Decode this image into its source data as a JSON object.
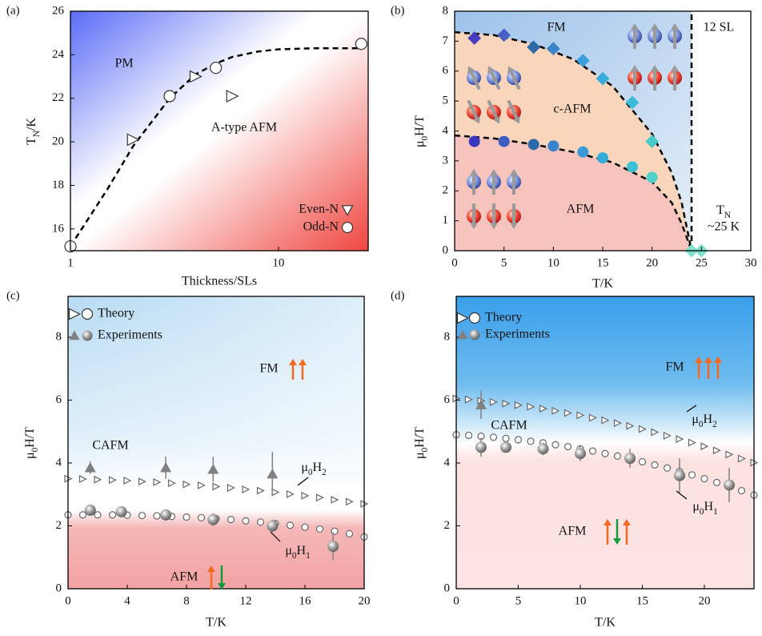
{
  "chart_data": [
    {
      "type": "scatter",
      "panel_label": "(a)",
      "x_label": "Thickness/SLs",
      "y_label": [
        "T",
        "N",
        "/K"
      ],
      "xlog": true,
      "xlim": [
        1,
        27
      ],
      "ylim": [
        15,
        26
      ],
      "xticks": [
        1,
        10
      ],
      "yticks": [
        16,
        18,
        20,
        22,
        24,
        26
      ],
      "series": [
        {
          "line": "dashed",
          "color": "#000000",
          "x": [
            1,
            1.5,
            2,
            3,
            4,
            5,
            6,
            8,
            10,
            15,
            25
          ],
          "values": [
            15.2,
            17.8,
            19.8,
            22.0,
            23.1,
            23.6,
            23.9,
            24.15,
            24.25,
            24.3,
            24.3
          ]
        },
        {
          "marker": "triangle-right",
          "color": "#ffffff",
          "edgecolor": "#333333",
          "x": [
            2,
            4,
            6
          ],
          "values": [
            20.1,
            23.0,
            22.1
          ]
        },
        {
          "marker": "circle",
          "color": "#ffffff",
          "edgecolor": "#333333",
          "x": [
            1,
            3,
            5,
            25
          ],
          "values": [
            15.2,
            22.1,
            23.4,
            24.5
          ]
        }
      ],
      "legend": [
        {
          "name": "Even-N",
          "markers": [
            "triangle-down"
          ]
        },
        {
          "name": "Odd-N",
          "markers": [
            "circle"
          ]
        }
      ],
      "annotations": [
        "PM",
        "A-type AFM"
      ]
    },
    {
      "type": "scatter",
      "panel_label": "(b)",
      "x_label": "T/K",
      "y_label": [
        "μ",
        "0",
        "H/T"
      ],
      "xlim": [
        0,
        30
      ],
      "ylim": [
        0,
        8
      ],
      "xticks": [
        0,
        5,
        10,
        15,
        20,
        25,
        30
      ],
      "yticks": [
        0,
        1,
        2,
        3,
        4,
        5,
        6,
        7,
        8
      ],
      "series": [
        {
          "line": "dashed",
          "color": "#000000",
          "x": [
            0,
            4,
            8,
            12,
            16,
            20,
            22,
            23,
            24
          ],
          "values": [
            7.3,
            7.2,
            6.9,
            6.4,
            5.5,
            3.9,
            2.6,
            1.6,
            0
          ]
        },
        {
          "line": "dashed",
          "color": "#000000",
          "x": [
            0,
            4,
            8,
            12,
            16,
            20,
            22,
            23,
            24
          ],
          "values": [
            3.85,
            3.75,
            3.55,
            3.3,
            2.95,
            2.3,
            1.6,
            0.9,
            0
          ]
        },
        {
          "line": "dashed",
          "color": "#000000",
          "x": [
            24,
            24
          ],
          "values": [
            0,
            8
          ]
        },
        {
          "marker": "diamond",
          "edgecolor": "none",
          "colors": [
            "#4a3cc0",
            "#4a5fc4",
            "#2f6aa8",
            "#3a86c8",
            "#3a9fd8",
            "#38acd9",
            "#38bcd8",
            "#48cbc6"
          ],
          "x": [
            2,
            5,
            8,
            10,
            13,
            15,
            18,
            20
          ],
          "values": [
            7.1,
            7.2,
            6.8,
            6.75,
            6.35,
            5.75,
            4.95,
            3.65
          ]
        },
        {
          "marker": "circle",
          "edgecolor": "none",
          "colors": [
            "#3a36c0",
            "#3b5cc4",
            "#2a6aa8",
            "#3584cc",
            "#3a9ad6",
            "#35acd9",
            "#3cc0d5",
            "#4fd0c8"
          ],
          "x": [
            2,
            5,
            8,
            10,
            13,
            15,
            18,
            20
          ],
          "values": [
            3.65,
            3.65,
            3.55,
            3.5,
            3.3,
            3.1,
            2.8,
            2.45
          ]
        },
        {
          "marker": "diamond",
          "edgecolor": "none",
          "color": "#7fe0cc",
          "x": [
            24,
            25
          ],
          "values": [
            0,
            0
          ]
        }
      ],
      "annotations": [
        "FM",
        "c-AFM",
        "AFM",
        "12 SL",
        [
          "T",
          "N"
        ],
        "~25 K"
      ]
    },
    {
      "type": "scatter",
      "panel_label": "(c)",
      "x_label": "T/K",
      "y_label": [
        "μ",
        "0",
        "H/T"
      ],
      "xlim": [
        0,
        20
      ],
      "ylim": [
        0,
        9.3
      ],
      "xticks": [
        0,
        4,
        8,
        12,
        16,
        20
      ],
      "yticks": [
        0,
        2,
        4,
        6,
        8
      ],
      "series": [
        {
          "marker": "triangle-right",
          "size": 4,
          "color": "#ffffff",
          "edgecolor": "#666666",
          "x": [
            0,
            1,
            2,
            3,
            4,
            5,
            6,
            7,
            8,
            9,
            10,
            11,
            12,
            13,
            14,
            15,
            16,
            17,
            18,
            19,
            20
          ],
          "values": [
            3.5,
            3.49,
            3.47,
            3.46,
            3.44,
            3.41,
            3.39,
            3.36,
            3.32,
            3.29,
            3.25,
            3.21,
            3.16,
            3.12,
            3.07,
            3.01,
            2.96,
            2.9,
            2.83,
            2.77,
            2.7
          ]
        },
        {
          "marker": "circle",
          "size": 4,
          "color": "#ffffff",
          "edgecolor": "#666666",
          "x": [
            0,
            1,
            2,
            3,
            4,
            5,
            6,
            7,
            8,
            9,
            10,
            11,
            12,
            13,
            14,
            15,
            16,
            17,
            18,
            19,
            20
          ],
          "values": [
            2.35,
            2.35,
            2.35,
            2.35,
            2.34,
            2.33,
            2.32,
            2.3,
            2.28,
            2.26,
            2.23,
            2.2,
            2.16,
            2.12,
            2.07,
            2.02,
            1.96,
            1.9,
            1.83,
            1.75,
            1.65
          ]
        },
        {
          "marker": "triangle-up",
          "color": "#808080",
          "edgecolor": "none",
          "x": [
            1.5,
            6.6,
            9.8,
            13.8
          ],
          "values": [
            3.85,
            3.85,
            3.8,
            3.65
          ],
          "errors": [
            0.2,
            0.35,
            0.4,
            0.7
          ]
        },
        {
          "marker": "sphere",
          "color": "#9a9a9a",
          "edgecolor": "none",
          "x": [
            1.5,
            3.6,
            6.6,
            9.8,
            13.8,
            17.9
          ],
          "values": [
            2.5,
            2.45,
            2.35,
            2.2,
            2.0,
            1.35
          ],
          "errors": [
            0.15,
            0.15,
            0.15,
            0.2,
            0.2,
            0.45
          ]
        }
      ],
      "legend": [
        {
          "name": "Theory",
          "markers": [
            "triangle-right",
            "circle"
          ]
        },
        {
          "name": "Experiments",
          "markers": [
            "triangle-up",
            "sphere"
          ]
        }
      ],
      "annotations": [
        "FM",
        "CAFM",
        "AFM",
        [
          "μ",
          "0",
          "H",
          "2"
        ],
        [
          "μ",
          "0",
          "H",
          "1"
        ]
      ]
    },
    {
      "type": "scatter",
      "panel_label": "(d)",
      "x_label": "T/K",
      "y_label": [
        "μ",
        "0",
        "H/T"
      ],
      "xlim": [
        0,
        24
      ],
      "ylim": [
        0,
        9.3
      ],
      "xticks": [
        0,
        5,
        10,
        15,
        20
      ],
      "yticks": [
        0,
        2,
        4,
        6,
        8
      ],
      "series": [
        {
          "marker": "triangle-right",
          "size": 4,
          "color": "#ffffff",
          "edgecolor": "#666666",
          "x": [
            0,
            1,
            2,
            3,
            4,
            5,
            6,
            7,
            8,
            9,
            10,
            11,
            12,
            13,
            14,
            15,
            16,
            17,
            18,
            19,
            20,
            21,
            22,
            23,
            24
          ],
          "values": [
            6.05,
            6.02,
            5.98,
            5.94,
            5.89,
            5.84,
            5.79,
            5.73,
            5.66,
            5.59,
            5.52,
            5.44,
            5.36,
            5.27,
            5.18,
            5.08,
            4.98,
            4.87,
            4.76,
            4.65,
            4.53,
            4.4,
            4.27,
            4.14,
            4.01
          ]
        },
        {
          "marker": "circle",
          "size": 4,
          "color": "#ffffff",
          "edgecolor": "#666666",
          "x": [
            0,
            1,
            2,
            3,
            4,
            5,
            6,
            7,
            8,
            9,
            10,
            11,
            12,
            13,
            14,
            15,
            16,
            17,
            18,
            19,
            20,
            21,
            22,
            23,
            24
          ],
          "values": [
            4.9,
            4.88,
            4.85,
            4.82,
            4.78,
            4.74,
            4.69,
            4.64,
            4.58,
            4.52,
            4.45,
            4.38,
            4.3,
            4.22,
            4.13,
            4.04,
            3.94,
            3.84,
            3.73,
            3.62,
            3.5,
            3.38,
            3.25,
            3.12,
            2.98
          ]
        },
        {
          "marker": "triangle-up",
          "color": "#808080",
          "edgecolor": "none",
          "x": [
            2
          ],
          "values": [
            5.85
          ],
          "errors": [
            0.45
          ]
        },
        {
          "marker": "sphere",
          "color": "#9a9a9a",
          "edgecolor": "none",
          "x": [
            2,
            4,
            7,
            10,
            14,
            18,
            22
          ],
          "values": [
            4.5,
            4.5,
            4.45,
            4.3,
            4.15,
            3.6,
            3.3
          ],
          "errors": [
            0.3,
            0.15,
            0.2,
            0.25,
            0.3,
            0.55,
            0.55
          ]
        }
      ],
      "legend": [
        {
          "name": "Theory",
          "markers": [
            "triangle-right",
            "circle"
          ]
        },
        {
          "name": "Experiments",
          "markers": [
            "triangle-up",
            "sphere"
          ]
        }
      ],
      "annotations": [
        "FM",
        "CAFM",
        "AFM",
        [
          "μ",
          "0",
          "H",
          "2"
        ],
        [
          "μ",
          "0",
          "H",
          "1"
        ]
      ]
    }
  ]
}
